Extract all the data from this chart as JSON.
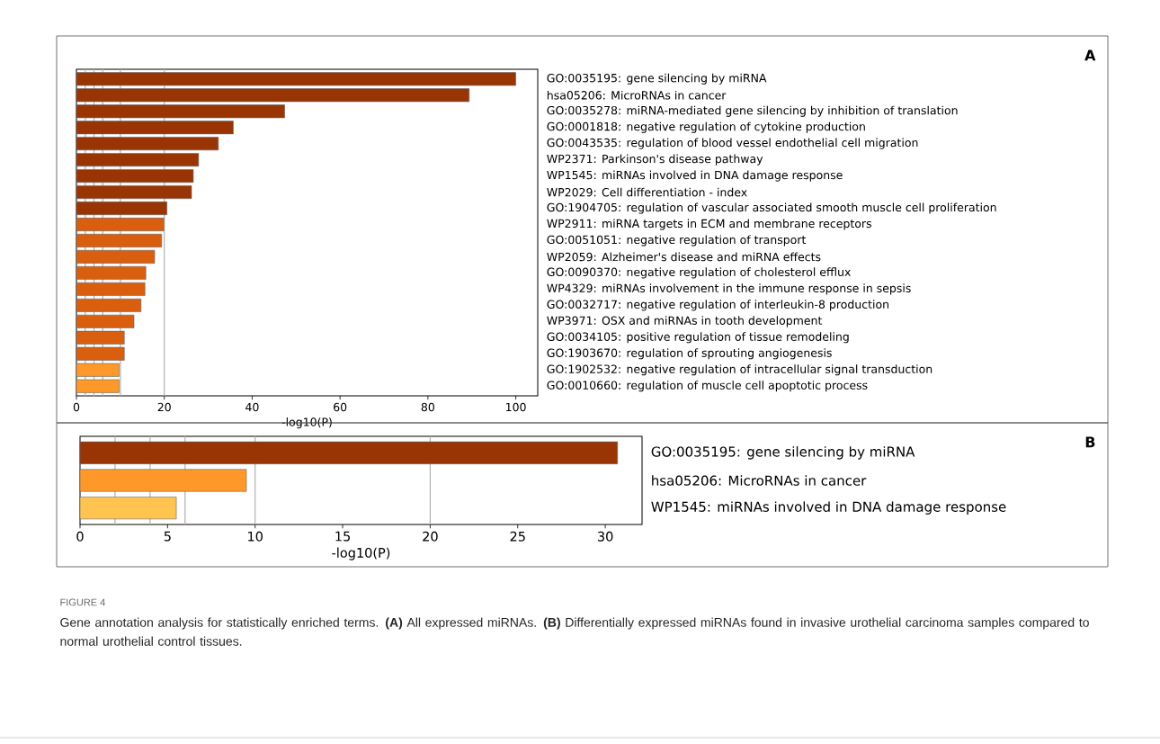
{
  "chart_data": [
    {
      "type": "bar",
      "orientation": "horizontal",
      "annotations": [
        "A"
      ],
      "xlabel": "-log10(P)",
      "categories": [
        "GO:0035195: gene silencing by miRNA",
        "hsa05206: MicroRNAs in cancer",
        "GO:0035278: miRNA-mediated gene silencing by inhibition of translation",
        "GO:0001818: negative regulation of cytokine production",
        "GO:0043535: regulation of blood vessel endothelial cell migration",
        "WP2371: Parkinson's disease pathway",
        "WP1545: miRNAs involved in DNA damage response",
        "WP2029: Cell differentiation - index",
        "GO:1904705: regulation of vascular associated smooth muscle cell proliferation",
        "WP2911: miRNA targets in ECM and membrane receptors",
        "GO:0051051: negative regulation of transport",
        "WP2059: Alzheimer's disease and miRNA effects",
        "GO:0090370: negative regulation of cholesterol efflux",
        "WP4329: miRNAs involvement in the immune response in sepsis",
        "GO:0032717: negative regulation of interleukin-8 production",
        "WP3971: OSX and miRNAs in tooth development",
        "GO:0034105: positive regulation of tissue remodeling",
        "GO:1903670: regulation of sprouting angiogenesis",
        "GO:1902532: negative regulation of intracellular signal transduction",
        "GO:0010660: regulation of muscle cell apoptotic process"
      ],
      "values": [
        100,
        89.4,
        47.4,
        35.7,
        32.3,
        27.8,
        26.6,
        26.2,
        20.6,
        19.9,
        19.4,
        17.8,
        15.8,
        15.6,
        14.7,
        13.1,
        10.9,
        10.9,
        9.7,
        9.7
      ],
      "colors": [
        "#993404",
        "#993404",
        "#993404",
        "#993404",
        "#993404",
        "#993404",
        "#993404",
        "#993404",
        "#993404",
        "#d95f0e",
        "#d95f0e",
        "#d95f0e",
        "#d95f0e",
        "#d95f0e",
        "#d95f0e",
        "#d95f0e",
        "#d95f0e",
        "#d95f0e",
        "#fe9929",
        "#fe9929"
      ],
      "xlim": [
        0,
        105
      ],
      "xticks": [
        0,
        20,
        40,
        60,
        80,
        100
      ],
      "ref_lines": [
        {
          "axis": "x",
          "value": 2,
          "color": "#b0b0b0"
        },
        {
          "axis": "x",
          "value": 4,
          "color": "#b0b0b0"
        },
        {
          "axis": "x",
          "value": 6,
          "color": "#b0b0b0"
        },
        {
          "axis": "x",
          "value": 10,
          "color": "#b0b0b0"
        },
        {
          "axis": "x",
          "value": 20,
          "color": "#b0b0b0"
        }
      ]
    },
    {
      "type": "bar",
      "orientation": "horizontal",
      "xlabel": "-log10(P)",
      "categories": [
        "GO:0035195: gene silencing by miRNA",
        "hsa05206: MicroRNAs in cancer",
        "WP1545: miRNAs involved in DNA damage response"
      ],
      "values": [
        30.7,
        9.5,
        5.5
      ],
      "colors": [
        "#993404",
        "#fe9929",
        "#fec44f"
      ],
      "xlim": [
        0,
        32.1
      ],
      "xticks": [
        0,
        5,
        10,
        15,
        20,
        25,
        30
      ],
      "ref_lines": [
        {
          "axis": "x",
          "value": 2,
          "color": "#b0b0b0"
        },
        {
          "axis": "x",
          "value": 4,
          "color": "#b0b0b0"
        },
        {
          "axis": "x",
          "value": 6,
          "color": "#b0b0b0"
        },
        {
          "axis": "x",
          "value": 10,
          "color": "#b0b0b0"
        },
        {
          "axis": "x",
          "value": 20,
          "color": "#b0b0b0"
        }
      ],
      "annotations": [
        "B",
        "FIGURE 4",
        "Gene annotation analysis for statistically enriched terms. **(A)** All expressed miRNAs. **(B)** Differentially expressed miRNAs found in invasive urothelial carcinoma samples compared to normal urothelial control tissues."
      ]
    }
  ]
}
